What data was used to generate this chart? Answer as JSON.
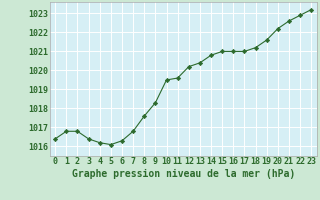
{
  "x": [
    0,
    1,
    2,
    3,
    4,
    5,
    6,
    7,
    8,
    9,
    10,
    11,
    12,
    13,
    14,
    15,
    16,
    17,
    18,
    19,
    20,
    21,
    22,
    23
  ],
  "y": [
    1016.4,
    1016.8,
    1016.8,
    1016.4,
    1016.2,
    1016.1,
    1016.3,
    1016.8,
    1017.6,
    1018.3,
    1019.5,
    1019.6,
    1020.2,
    1020.4,
    1020.8,
    1021.0,
    1021.0,
    1021.0,
    1021.2,
    1021.6,
    1022.2,
    1022.6,
    1022.9,
    1023.2
  ],
  "ylim": [
    1015.5,
    1023.6
  ],
  "yticks": [
    1016,
    1017,
    1018,
    1019,
    1020,
    1021,
    1022,
    1023
  ],
  "xticks": [
    0,
    1,
    2,
    3,
    4,
    5,
    6,
    7,
    8,
    9,
    10,
    11,
    12,
    13,
    14,
    15,
    16,
    17,
    18,
    19,
    20,
    21,
    22,
    23
  ],
  "xlabel": "Graphe pression niveau de la mer (hPa)",
  "line_color": "#2d6b2d",
  "marker": "D",
  "marker_size": 2.2,
  "bg_color": "#cce8d4",
  "plot_bg_color": "#d6eff5",
  "grid_color": "#ffffff",
  "tick_color": "#2d6b2d",
  "label_color": "#2d6b2d",
  "xlabel_fontsize": 7.0,
  "tick_fontsize": 6.0
}
